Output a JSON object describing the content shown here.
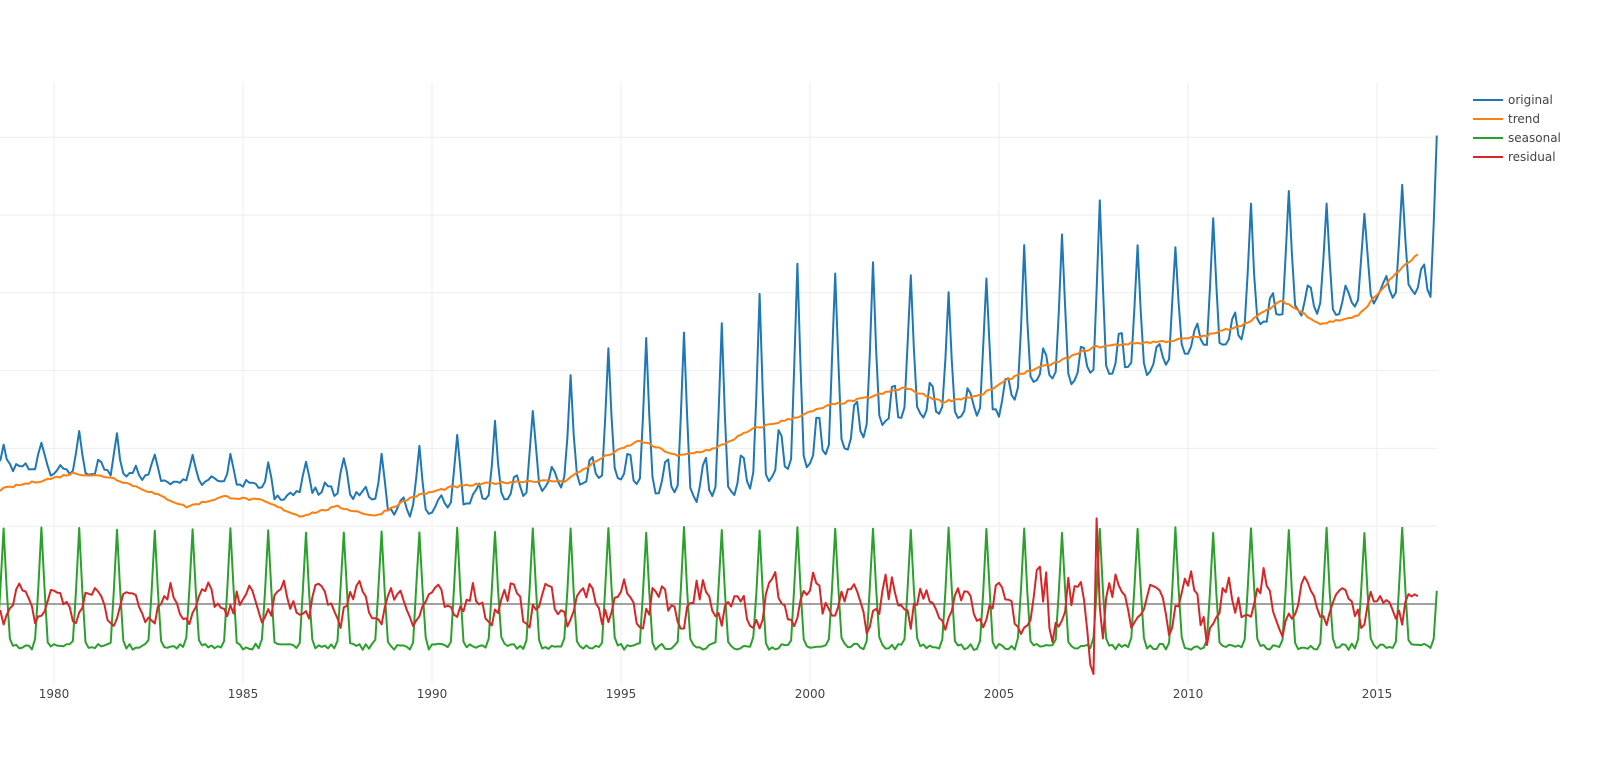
{
  "chart_data": {
    "type": "line",
    "title": "",
    "xlabel": "",
    "ylabel": "",
    "x_range": [
      1978.0,
      2016.6
    ],
    "y_range": [
      -1.0,
      7.0
    ],
    "x_ticks": [
      1980,
      1985,
      1990,
      1995,
      2000,
      2005,
      2010,
      2015
    ],
    "x_tick_labels": [
      "1980",
      "1985",
      "1990",
      "1995",
      "2000",
      "2005",
      "2010",
      "2015"
    ],
    "grid": true,
    "legend_position": "top-right",
    "series": [
      {
        "name": "original",
        "color": "#1f77b4",
        "annual_peak_month": 8,
        "x": [
          1978.0,
          1979.0,
          1980.0,
          1981.0,
          1982.0,
          1983.0,
          1984.0,
          1985.0,
          1986.0,
          1987.0,
          1988.0,
          1989.0,
          1990.0,
          1991.0,
          1992.0,
          1993.0,
          1994.0,
          1995.0,
          1996.0,
          1997.0,
          1998.0,
          1999.0,
          2000.0,
          2001.0,
          2002.0,
          2003.0,
          2004.0,
          2005.0,
          2006.0,
          2007.0,
          2008.0,
          2009.0,
          2010.0,
          2011.0,
          2012.0,
          2013.0,
          2014.0,
          2015.0,
          2016.0,
          2016.6
        ],
        "annual_low": [
          1.9,
          1.75,
          1.7,
          1.7,
          1.65,
          1.55,
          1.55,
          1.55,
          1.35,
          1.45,
          1.4,
          1.2,
          1.15,
          1.3,
          1.4,
          1.45,
          1.55,
          1.6,
          1.45,
          1.35,
          1.4,
          1.6,
          1.8,
          2.0,
          2.3,
          2.45,
          2.4,
          2.45,
          2.85,
          2.85,
          3.0,
          3.0,
          3.25,
          3.3,
          3.6,
          3.75,
          3.75,
          3.9,
          4.0,
          4.0
        ],
        "annual_peak": [
          2.0,
          2.0,
          2.05,
          2.25,
          2.1,
          1.9,
          1.85,
          1.9,
          1.75,
          1.95,
          1.85,
          1.9,
          2.05,
          2.2,
          2.4,
          2.6,
          3.05,
          3.35,
          3.4,
          3.6,
          3.6,
          4.2,
          4.4,
          4.25,
          4.45,
          4.2,
          3.9,
          4.3,
          4.7,
          4.8,
          5.3,
          4.35,
          4.65,
          5.1,
          5.1,
          5.5,
          5.0,
          5.1,
          5.45,
          6.25
        ]
      },
      {
        "name": "trend",
        "color": "#ff7f0e",
        "x": [
          1978.0,
          1979.0,
          1980.0,
          1980.5,
          1981.5,
          1982.5,
          1983.5,
          1984.5,
          1985.5,
          1986.5,
          1987.5,
          1988.5,
          1989.5,
          1990.5,
          1991.5,
          1992.5,
          1993.5,
          1994.5,
          1995.5,
          1996.5,
          1997.5,
          1998.5,
          1999.5,
          2000.5,
          2001.5,
          2002.5,
          2003.5,
          2004.5,
          2005.5,
          2006.5,
          2007.5,
          2008.5,
          2009.5,
          2010.5,
          2011.5,
          2012.5,
          2013.5,
          2014.5,
          2015.5,
          2016.1
        ],
        "values": [
          1.4,
          1.52,
          1.62,
          1.68,
          1.63,
          1.45,
          1.25,
          1.38,
          1.33,
          1.13,
          1.25,
          1.13,
          1.38,
          1.5,
          1.55,
          1.58,
          1.58,
          1.88,
          2.1,
          1.9,
          2.0,
          2.25,
          2.38,
          2.55,
          2.65,
          2.78,
          2.6,
          2.68,
          2.95,
          3.1,
          3.3,
          3.35,
          3.38,
          3.45,
          3.6,
          3.9,
          3.6,
          3.7,
          4.25,
          4.5
        ]
      },
      {
        "name": "seasonal",
        "color": "#2ca02c",
        "peak_month": 8,
        "amplitude_high": 0.95,
        "amplitude_low": -0.55,
        "x_range": [
          1978.0,
          2016.6
        ]
      },
      {
        "name": "residual",
        "color": "#d62728",
        "x": [
          1978.0,
          1980.0,
          1985.0,
          1990.0,
          1995.0,
          1996.0,
          1997.0,
          1998.0,
          1999.0,
          2000.0,
          2001.0,
          2002.0,
          2003.0,
          2004.0,
          2005.0,
          2006.0,
          2007.0,
          2007.6,
          2008.0,
          2009.0,
          2010.0,
          2011.0,
          2012.0,
          2013.0,
          2014.0,
          2015.0,
          2016.0
        ],
        "amplitude": [
          0.3,
          0.3,
          0.3,
          0.3,
          0.3,
          0.4,
          0.35,
          0.45,
          0.45,
          0.4,
          0.35,
          0.4,
          0.35,
          0.3,
          0.3,
          0.65,
          0.7,
          1.1,
          0.4,
          0.3,
          0.5,
          0.55,
          0.5,
          0.35,
          0.3,
          0.3,
          0.3
        ]
      }
    ],
    "zero_line": true
  }
}
